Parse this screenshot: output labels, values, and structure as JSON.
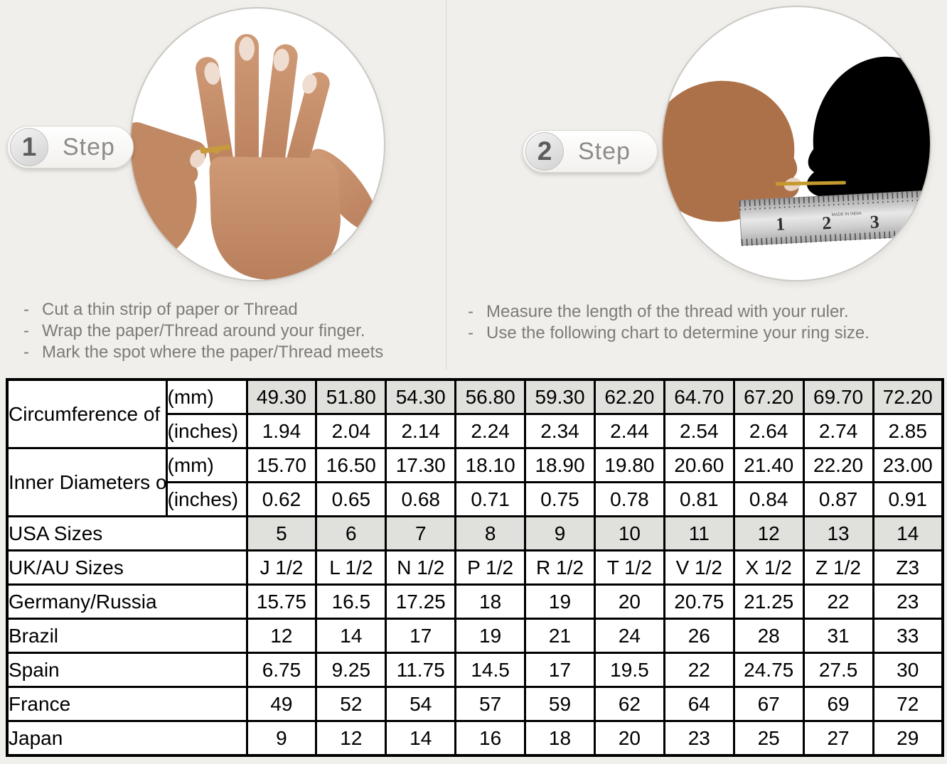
{
  "colors": {
    "background": "#f1efeb",
    "shaded_cell": "#e0e0dd",
    "table_border": "#000000",
    "thread_gold": "#c79a3b"
  },
  "steps": [
    {
      "number": "1",
      "label": "Step",
      "bullet": "-",
      "image": "hand-with-thread-photo",
      "instructions": [
        "Cut a thin strip of paper or Thread",
        "Wrap the paper/Thread around your finger.",
        "Mark the spot where the paper/Thread meets"
      ]
    },
    {
      "number": "2",
      "label": "Step",
      "bullet": "-",
      "image": "thread-measured-on-ruler-photo",
      "instructions": [
        "Measure the length of the thread with your ruler.",
        "Use the following chart to determine your ring size."
      ],
      "ruler_numbers": [
        "1",
        "2",
        "3"
      ],
      "ruler_brand_text": "MADE IN INDIA"
    }
  ],
  "table": {
    "row_groups": [
      {
        "label": "Circumference of Your Finger",
        "rows": [
          {
            "unit": "(mm)",
            "shaded": true,
            "values": [
              "49.30",
              "51.80",
              "54.30",
              "56.80",
              "59.30",
              "62.20",
              "64.70",
              "67.20",
              "69.70",
              "72.20"
            ]
          },
          {
            "unit": "(inches)",
            "shaded": false,
            "values": [
              "1.94",
              "2.04",
              "2.14",
              "2.24",
              "2.34",
              "2.44",
              "2.54",
              "2.64",
              "2.74",
              "2.85"
            ]
          }
        ]
      },
      {
        "label": "Inner Diameters of Rings",
        "rows": [
          {
            "unit": "(mm)",
            "shaded": false,
            "values": [
              "15.70",
              "16.50",
              "17.30",
              "18.10",
              "18.90",
              "19.80",
              "20.60",
              "21.40",
              "22.20",
              "23.00"
            ]
          },
          {
            "unit": "(inches)",
            "shaded": false,
            "values": [
              "0.62",
              "0.65",
              "0.68",
              "0.71",
              "0.75",
              "0.78",
              "0.81",
              "0.84",
              "0.87",
              "0.91"
            ]
          }
        ]
      }
    ],
    "size_rows": [
      {
        "label": "USA Sizes",
        "shaded": true,
        "values": [
          "5",
          "6",
          "7",
          "8",
          "9",
          "10",
          "11",
          "12",
          "13",
          "14"
        ]
      },
      {
        "label": "UK/AU Sizes",
        "shaded": false,
        "values": [
          "J 1/2",
          "L 1/2",
          "N 1/2",
          "P 1/2",
          "R 1/2",
          "T 1/2",
          "V 1/2",
          "X 1/2",
          "Z 1/2",
          "Z3"
        ]
      },
      {
        "label": "Germany/Russia",
        "shaded": false,
        "values": [
          "15.75",
          "16.5",
          "17.25",
          "18",
          "19",
          "20",
          "20.75",
          "21.25",
          "22",
          "23"
        ]
      },
      {
        "label": "Brazil",
        "shaded": false,
        "values": [
          "12",
          "14",
          "17",
          "19",
          "21",
          "24",
          "26",
          "28",
          "31",
          "33"
        ]
      },
      {
        "label": "Spain",
        "shaded": false,
        "values": [
          "6.75",
          "9.25",
          "11.75",
          "14.5",
          "17",
          "19.5",
          "22",
          "24.75",
          "27.5",
          "30"
        ]
      },
      {
        "label": "France",
        "shaded": false,
        "values": [
          "49",
          "52",
          "54",
          "57",
          "59",
          "62",
          "64",
          "67",
          "69",
          "72"
        ]
      },
      {
        "label": "Japan",
        "shaded": false,
        "values": [
          "9",
          "12",
          "14",
          "16",
          "18",
          "20",
          "23",
          "25",
          "27",
          "29"
        ]
      }
    ]
  }
}
